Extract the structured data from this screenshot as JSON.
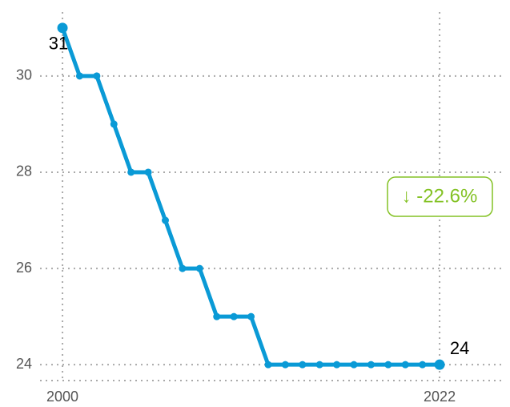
{
  "chart_data": {
    "type": "line",
    "x": [
      2000,
      2001,
      2002,
      2003,
      2004,
      2005,
      2006,
      2007,
      2008,
      2009,
      2010,
      2011,
      2012,
      2013,
      2014,
      2015,
      2016,
      2017,
      2018,
      2019,
      2020,
      2021,
      2022
    ],
    "values": [
      31,
      30,
      30,
      29,
      28,
      28,
      27,
      26,
      26,
      25,
      25,
      25,
      24,
      24,
      24,
      24,
      24,
      24,
      24,
      24,
      24,
      24,
      24
    ],
    "color": "#0a9ad6",
    "xlim": [
      1998.69,
      2025.78
    ],
    "xticks": [
      2000,
      2022
    ],
    "ylim": [
      23.67,
      31.33
    ],
    "yticks": [
      24,
      26,
      28,
      30
    ],
    "grid": true,
    "annotation": "↓ -22.6%",
    "annotation_color": "#84c225"
  }
}
